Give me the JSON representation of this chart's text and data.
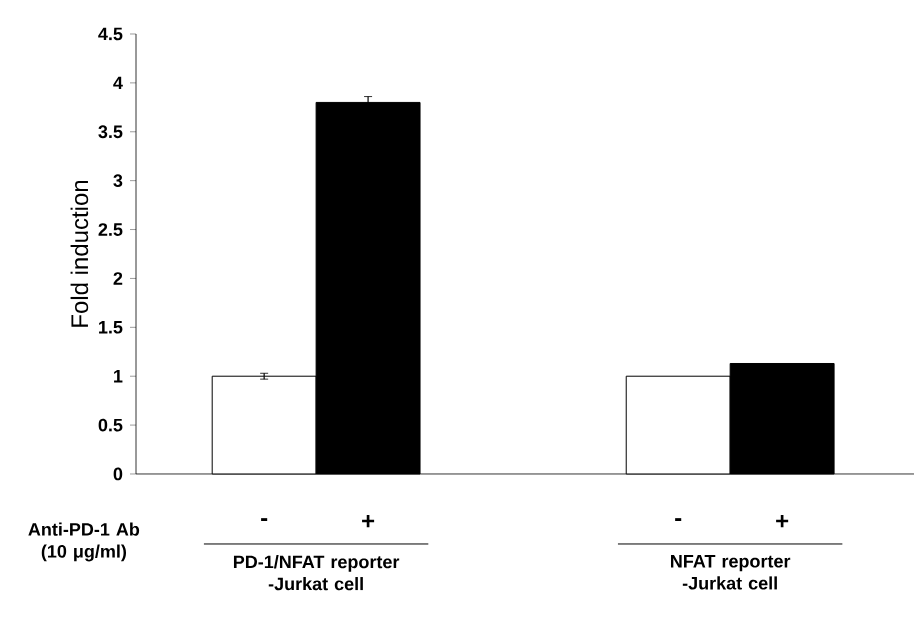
{
  "chart_data": {
    "type": "bar",
    "xlabel": "Anti-PD-1 Ab (10 μg/ml)",
    "ylabel": "Fold induction",
    "categories": [
      "PD-1/NFAT reporter -Jurkat cell",
      "NFAT reporter -Jurkat cell"
    ],
    "series": [
      {
        "name": "-",
        "color": "#ffffff",
        "values": [
          1.0,
          1.0
        ],
        "errors": [
          0.03,
          null
        ]
      },
      {
        "name": "+",
        "color": "#000000",
        "values": [
          3.8,
          1.13
        ],
        "errors": [
          0.06,
          null
        ]
      }
    ],
    "ylim": [
      0,
      4.5
    ],
    "yticks": [
      0,
      0.5,
      1,
      1.5,
      2,
      2.5,
      3,
      3.5,
      4,
      4.5
    ]
  }
}
